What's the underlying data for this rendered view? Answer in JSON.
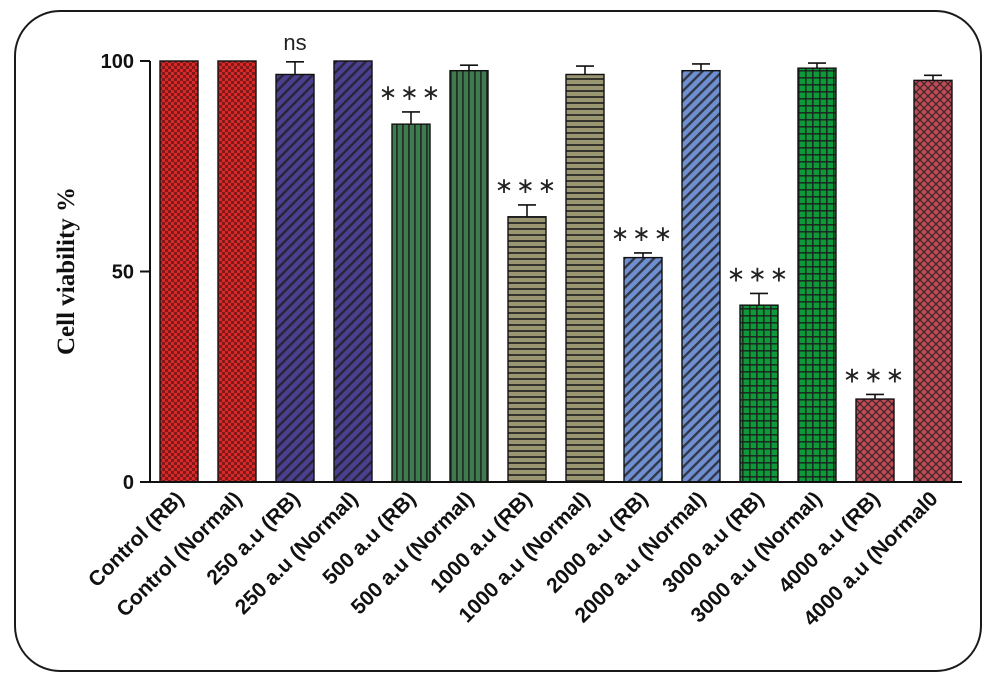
{
  "chart_data": {
    "type": "bar",
    "ylabel": "Cell viability %",
    "xlabel": "",
    "ylim": [
      0,
      100
    ],
    "yticks": [
      0,
      50,
      100
    ],
    "grid": false,
    "legend": "none",
    "categories": [
      "Control (RB)",
      "Control (Normal)",
      "250 a.u (RB)",
      "250 a.u (Normal)",
      "500 a.u (RB)",
      "500 a.u (Normal)",
      "1000 a.u (RB)",
      "1000 a.u (Normal)",
      "2000 a.u (RB)",
      "2000 a.u (Normal)",
      "3000 a.u (RB)",
      "3000 a.u (Normal)",
      "4000 a.u (RB)",
      "4000 a.u (Normal0"
    ],
    "values": [
      100,
      100,
      96.8,
      100,
      85,
      97.7,
      63,
      96.8,
      53.3,
      97.7,
      42,
      98.3,
      19.7,
      95.4
    ],
    "errors": [
      0,
      0,
      3.0,
      0,
      2.9,
      1.3,
      2.8,
      2.0,
      1.1,
      1.6,
      2.8,
      1.2,
      1.1,
      1.2
    ],
    "annotations": [
      "",
      "",
      "ns",
      "",
      "***",
      "",
      "***",
      "",
      "***",
      "",
      "***",
      "",
      "***",
      ""
    ],
    "colors": [
      "#d62a2a",
      "#d62a2a",
      "#4b3f8f",
      "#4b3f8f",
      "#3e7b4e",
      "#3e7b4e",
      "#9b9672",
      "#9b9672",
      "#6f8fd0",
      "#6f8fd0",
      "#0e9a3a",
      "#0e9a3a",
      "#c04b57",
      "#c04b57"
    ],
    "patterns": [
      "checker",
      "checker",
      "diag",
      "diag",
      "vert",
      "vert",
      "horiz",
      "horiz",
      "diag",
      "diag",
      "grid",
      "grid",
      "crosshatch",
      "crosshatch"
    ]
  }
}
